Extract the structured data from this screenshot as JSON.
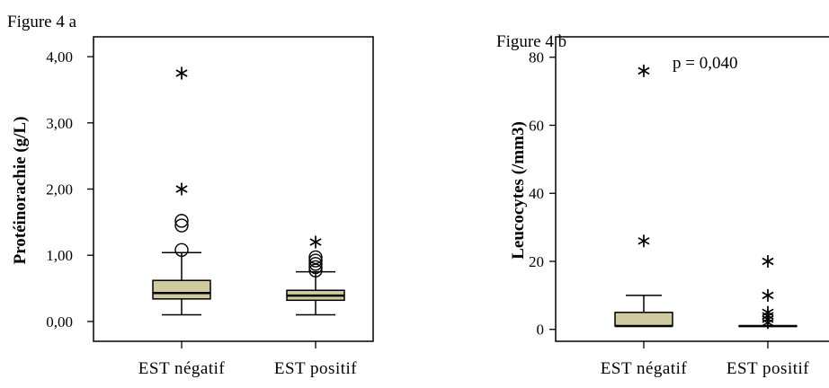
{
  "figure_a_label": "Figure 4 a",
  "figure_b_label": "Figure 4 b",
  "colors": {
    "box_fill": "#cfcaa0",
    "stroke": "#000000",
    "background": "#ffffff"
  },
  "chart_data": [
    {
      "id": "a",
      "type": "box",
      "title": "",
      "ylabel": "Protéinorachie (g/L)",
      "xlabel": "",
      "ylim": [
        -0.3,
        4.3
      ],
      "y_ticks": [
        0,
        1,
        2,
        3,
        4
      ],
      "y_tick_labels": [
        "0,00",
        "1,00",
        "2,00",
        "3,00",
        "4,00"
      ],
      "categories": [
        "EST négatif",
        "EST positif"
      ],
      "boxes": [
        {
          "category": "EST négatif",
          "whisker_low": 0.1,
          "q1": 0.34,
          "median": 0.43,
          "q3": 0.62,
          "whisker_high": 1.04,
          "outliers_circle": [
            1.08,
            1.45,
            1.52
          ],
          "outliers_star": [
            2.0,
            3.75
          ]
        },
        {
          "category": "EST positif",
          "whisker_low": 0.1,
          "q1": 0.32,
          "median": 0.39,
          "q3": 0.47,
          "whisker_high": 0.75,
          "outliers_circle": [
            0.77,
            0.82,
            0.87,
            0.92,
            0.97
          ],
          "outliers_star": [
            1.2
          ]
        }
      ],
      "annotation": ""
    },
    {
      "id": "b",
      "type": "box",
      "title": "",
      "ylabel": "Leucocytes (/mm3)",
      "xlabel": "",
      "ylim": [
        -3.5,
        86
      ],
      "y_ticks": [
        0,
        20,
        40,
        60,
        80
      ],
      "y_tick_labels": [
        "0",
        "20",
        "40",
        "60",
        "80"
      ],
      "categories": [
        "EST négatif",
        "EST positif"
      ],
      "boxes": [
        {
          "category": "EST négatif",
          "whisker_low": 1,
          "q1": 1,
          "median": 1,
          "q3": 5,
          "whisker_high": 10,
          "outliers_circle": [],
          "outliers_star": [
            26,
            76
          ]
        },
        {
          "category": "EST positif",
          "whisker_low": 1,
          "q1": 1,
          "median": 1,
          "q3": 1,
          "whisker_high": 1,
          "outliers_circle": [],
          "outliers_star": [
            2,
            3,
            4,
            5,
            10,
            20
          ]
        }
      ],
      "annotation": "p = 0,040"
    }
  ]
}
